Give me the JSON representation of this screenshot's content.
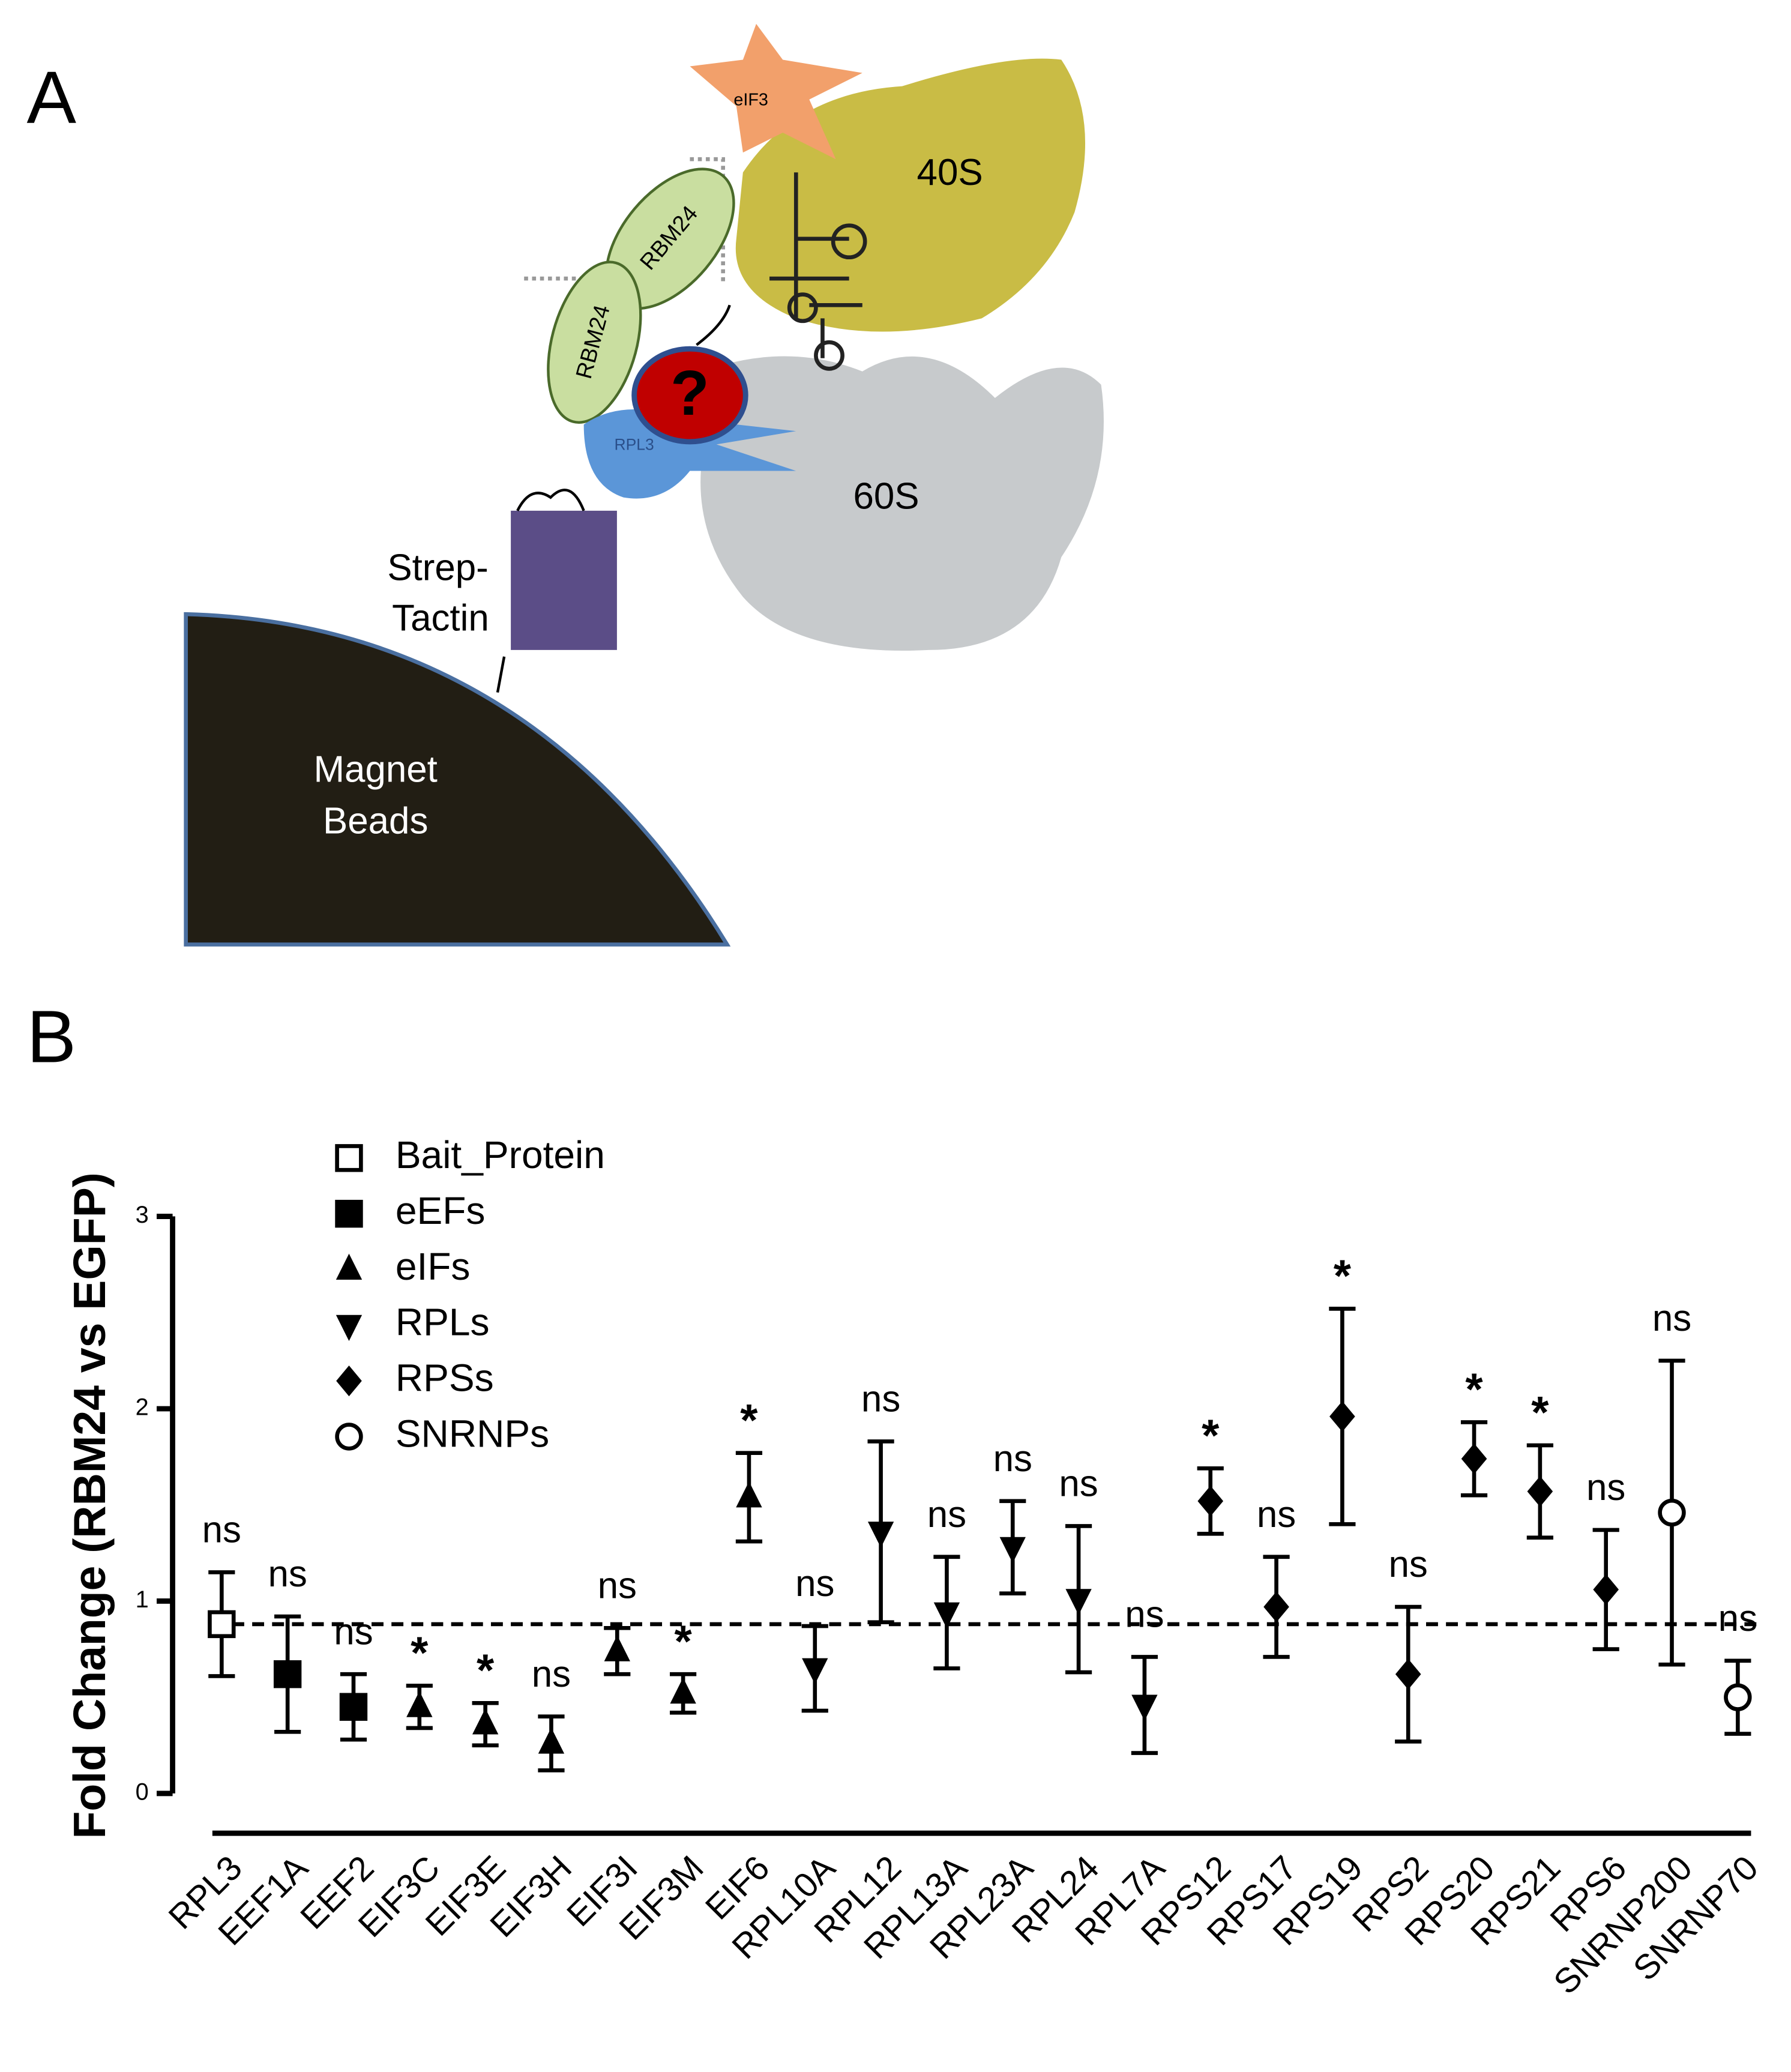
{
  "panel_a": {
    "panel_label": "A",
    "labels": {
      "eif3": "eIF3",
      "s40": "40S",
      "rbm24_top": "RBM24",
      "rbm24_bottom": "RBM24",
      "question": "?",
      "rpl3": "RPL3",
      "s60": "60S",
      "strep_1": "Strep-",
      "strep_2": "Tactin",
      "beads_1": "Magnet",
      "beads_2": "Beads"
    }
  },
  "chart_data": {
    "type": "scatter",
    "panel_label": "B",
    "y_label": "Fold Change (RBM24 vs EGFP)",
    "categories": [
      "RPL3",
      "EEF1A",
      "EEF2",
      "EIF3C",
      "EIF3E",
      "EIF3H",
      "EIF3I",
      "EIF3M",
      "EIF6",
      "RPL10A",
      "RPL12",
      "RPL13A",
      "RPL23A",
      "RPL24",
      "RPL7A",
      "RPS12",
      "RPS17",
      "RPS19",
      "RPS2",
      "RPS20",
      "RPS21",
      "RPS6",
      "SNRNP200",
      "SNRNP70"
    ],
    "annotations": [
      "ns",
      "ns",
      "ns",
      "*",
      "*",
      "ns",
      "ns",
      "*",
      "*",
      "ns",
      "ns",
      "ns",
      "ns",
      "ns",
      "ns",
      "*",
      "ns",
      "*",
      "ns",
      "*",
      "*",
      "ns",
      "ns",
      "ns"
    ],
    "series": [
      {
        "name": "Bait_Protein",
        "marker": "square-open",
        "color": "#000000",
        "values": [
          0.88,
          null,
          null,
          null,
          null,
          null,
          null,
          null,
          null,
          null,
          null,
          null,
          null,
          null,
          null,
          null,
          null,
          null,
          null,
          null,
          null,
          null,
          null,
          null
        ],
        "errors": [
          0.27,
          null,
          null,
          null,
          null,
          null,
          null,
          null,
          null,
          null,
          null,
          null,
          null,
          null,
          null,
          null,
          null,
          null,
          null,
          null,
          null,
          null,
          null,
          null
        ]
      },
      {
        "name": "eEFs",
        "marker": "square",
        "color": "#000000",
        "values": [
          null,
          0.62,
          0.45,
          null,
          null,
          null,
          null,
          null,
          null,
          null,
          null,
          null,
          null,
          null,
          null,
          null,
          null,
          null,
          null,
          null,
          null,
          null,
          null,
          null
        ],
        "errors": [
          null,
          0.3,
          0.17,
          null,
          null,
          null,
          null,
          null,
          null,
          null,
          null,
          null,
          null,
          null,
          null,
          null,
          null,
          null,
          null,
          null,
          null,
          null,
          null,
          null
        ]
      },
      {
        "name": "eIFs",
        "marker": "triangle-up",
        "color": "#000000",
        "values": [
          null,
          null,
          null,
          0.45,
          0.36,
          0.26,
          0.74,
          0.52,
          1.54,
          null,
          null,
          null,
          null,
          null,
          null,
          null,
          null,
          null,
          null,
          null,
          null,
          null,
          null,
          null
        ],
        "errors": [
          null,
          null,
          null,
          0.11,
          0.11,
          0.14,
          0.12,
          0.1,
          0.23,
          null,
          null,
          null,
          null,
          null,
          null,
          null,
          null,
          null,
          null,
          null,
          null,
          null,
          null,
          null
        ]
      },
      {
        "name": "RPLs",
        "marker": "triangle-down",
        "color": "#000000",
        "values": [
          null,
          null,
          null,
          null,
          null,
          null,
          null,
          null,
          null,
          0.65,
          1.36,
          0.94,
          1.28,
          1.01,
          0.46,
          null,
          null,
          null,
          null,
          null,
          null,
          null,
          null,
          null
        ],
        "errors": [
          null,
          null,
          null,
          null,
          null,
          null,
          null,
          null,
          null,
          0.22,
          0.47,
          0.29,
          0.24,
          0.38,
          0.25,
          null,
          null,
          null,
          null,
          null,
          null,
          null,
          null,
          null
        ]
      },
      {
        "name": "RPSs",
        "marker": "diamond",
        "color": "#000000",
        "values": [
          null,
          null,
          null,
          null,
          null,
          null,
          null,
          null,
          null,
          null,
          null,
          null,
          null,
          null,
          null,
          1.52,
          0.97,
          1.96,
          0.62,
          1.74,
          1.57,
          1.06,
          null,
          null
        ],
        "errors": [
          null,
          null,
          null,
          null,
          null,
          null,
          null,
          null,
          null,
          null,
          null,
          null,
          null,
          null,
          null,
          0.17,
          0.26,
          0.56,
          0.35,
          0.19,
          0.24,
          0.31,
          null,
          null
        ]
      },
      {
        "name": "SNRNPs",
        "marker": "circle-open",
        "color": "#000000",
        "values": [
          null,
          null,
          null,
          null,
          null,
          null,
          null,
          null,
          null,
          null,
          null,
          null,
          null,
          null,
          null,
          null,
          null,
          null,
          null,
          null,
          null,
          null,
          1.46,
          0.5
        ],
        "errors": [
          null,
          null,
          null,
          null,
          null,
          null,
          null,
          null,
          null,
          null,
          null,
          null,
          null,
          null,
          null,
          null,
          null,
          null,
          null,
          null,
          null,
          null,
          0.79,
          0.19
        ]
      }
    ],
    "reference_line": 0.88,
    "ylim": [
      0,
      3
    ],
    "yticks": [
      0,
      1,
      2,
      3
    ]
  }
}
